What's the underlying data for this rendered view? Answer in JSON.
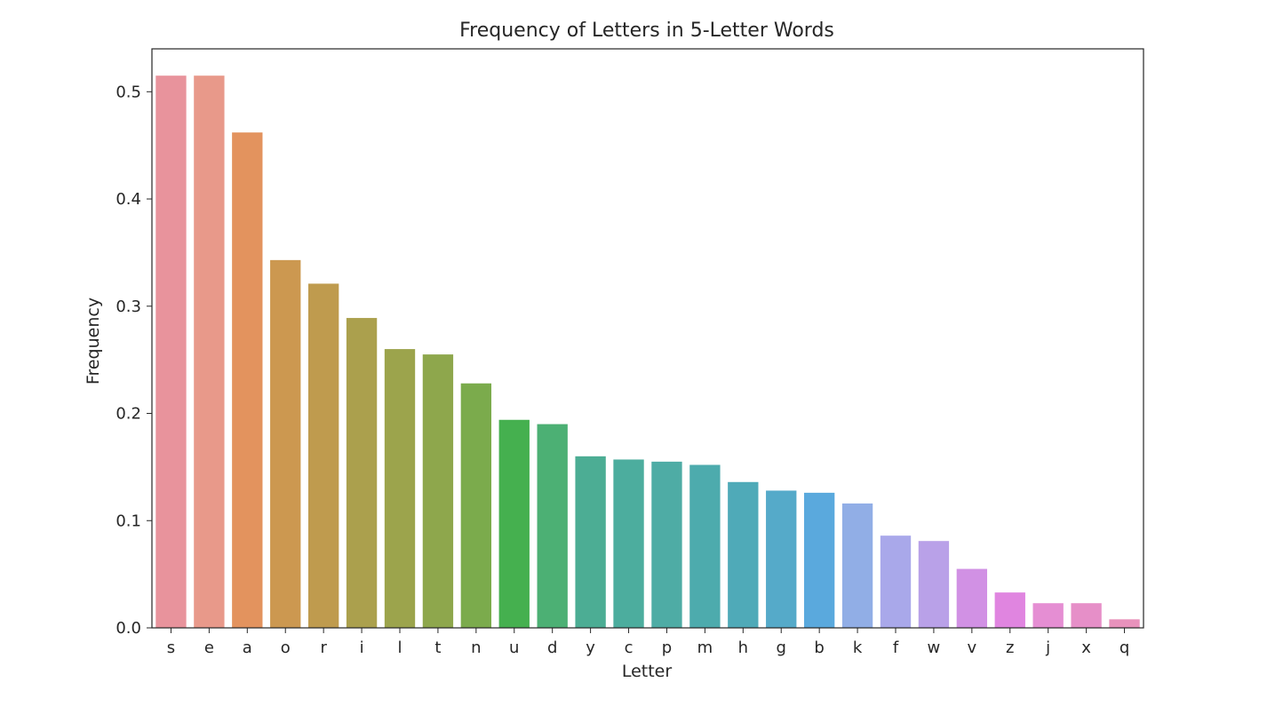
{
  "chart_data": {
    "type": "bar",
    "title": "Frequency of Letters in 5-Letter Words",
    "xlabel": "Letter",
    "ylabel": "Frequency",
    "ylim": [
      0,
      0.54
    ],
    "yticks": [
      0.0,
      0.1,
      0.2,
      0.3,
      0.4,
      0.5
    ],
    "ytick_labels": [
      "0.0",
      "0.1",
      "0.2",
      "0.3",
      "0.4",
      "0.5"
    ],
    "grid": false,
    "categories": [
      "s",
      "e",
      "a",
      "o",
      "r",
      "i",
      "l",
      "t",
      "n",
      "u",
      "d",
      "y",
      "c",
      "p",
      "m",
      "h",
      "g",
      "b",
      "k",
      "f",
      "w",
      "v",
      "z",
      "j",
      "x",
      "q"
    ],
    "values": [
      0.515,
      0.515,
      0.462,
      0.343,
      0.321,
      0.289,
      0.26,
      0.255,
      0.228,
      0.194,
      0.19,
      0.16,
      0.157,
      0.155,
      0.152,
      0.136,
      0.128,
      0.126,
      0.116,
      0.086,
      0.081,
      0.055,
      0.033,
      0.023,
      0.023,
      0.008
    ],
    "colors": [
      "#e8939c",
      "#e8998a",
      "#e3935e",
      "#cc9850",
      "#bf9b4e",
      "#aba04d",
      "#9ca44c",
      "#8ea74c",
      "#7bab4c",
      "#45b04f",
      "#4cb074",
      "#4cad94",
      "#4cad9e",
      "#4eaca5",
      "#4dabad",
      "#4faab8",
      "#55aac9",
      "#5aa9dd",
      "#91aee6",
      "#a9a8ea",
      "#b9a1e8",
      "#d191e4",
      "#e085e0",
      "#e58ed3",
      "#e68fc8",
      "#e892bc"
    ]
  }
}
